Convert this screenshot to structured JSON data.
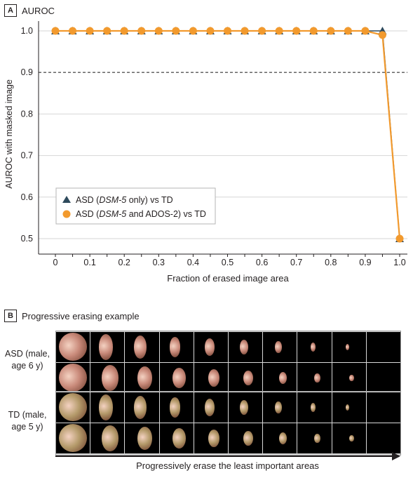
{
  "panel_a": {
    "letter": "A",
    "title": "AUROC"
  },
  "panel_b": {
    "letter": "B",
    "title": "Progressive erasing example",
    "subjects": [
      {
        "label_line1": "ASD (male,",
        "label_line2": "age 6 y)",
        "tint": "#c98a7a"
      },
      {
        "label_line1": "TD (male,",
        "label_line2": "age 5 y)",
        "tint": "#b49a6a"
      }
    ],
    "arrow_label": "Progressively erase the least important areas"
  },
  "chart_data": {
    "type": "line",
    "title": "",
    "xlabel": "Fraction of erased image area",
    "ylabel": "AUROC with masked image",
    "xlim": [
      0,
      1.0
    ],
    "ylim": [
      0.5,
      1.0
    ],
    "x": [
      0,
      0.05,
      0.1,
      0.15,
      0.2,
      0.25,
      0.3,
      0.35,
      0.4,
      0.45,
      0.5,
      0.55,
      0.6,
      0.65,
      0.7,
      0.75,
      0.8,
      0.85,
      0.9,
      0.95,
      1.0
    ],
    "x_ticks": [
      0,
      0.1,
      0.2,
      0.3,
      0.4,
      0.5,
      0.6,
      0.7,
      0.8,
      0.9,
      1.0
    ],
    "x_tick_labels": [
      "0",
      "0.1",
      "0.2",
      "0.3",
      "0.4",
      "0.5",
      "0.6",
      "0.7",
      "0.8",
      "0.9",
      "1.0"
    ],
    "y_ticks": [
      0.5,
      0.6,
      0.7,
      0.8,
      0.9,
      1.0
    ],
    "y_tick_labels": [
      "0.5",
      "0.6",
      "0.7",
      "0.8",
      "0.9",
      "1.0"
    ],
    "grid": "horizontal",
    "reference_line": {
      "y": 0.9,
      "style": "dashed"
    },
    "legend_placement": "lower-left",
    "series": [
      {
        "name": "ASD (DSM-5 only) vs TD",
        "name_prefix": "ASD (",
        "name_italic": "DSM-5",
        "name_suffix": " only) vs TD",
        "marker": "triangle",
        "color": "#2e4a5c",
        "values": [
          1.0,
          1.0,
          1.0,
          1.0,
          1.0,
          1.0,
          1.0,
          1.0,
          1.0,
          1.0,
          1.0,
          1.0,
          1.0,
          1.0,
          1.0,
          1.0,
          1.0,
          1.0,
          1.0,
          1.0,
          0.5
        ]
      },
      {
        "name": "ASD (DSM-5 and ADOS-2) vs TD",
        "name_prefix": "ASD (",
        "name_italic": "DSM-5",
        "name_suffix": " and ADOS-2) vs TD",
        "marker": "circle",
        "color": "#f29a2e",
        "values": [
          1.0,
          1.0,
          1.0,
          1.0,
          1.0,
          1.0,
          1.0,
          1.0,
          1.0,
          1.0,
          1.0,
          1.0,
          1.0,
          1.0,
          1.0,
          1.0,
          1.0,
          1.0,
          1.0,
          0.99,
          0.5
        ]
      }
    ]
  }
}
